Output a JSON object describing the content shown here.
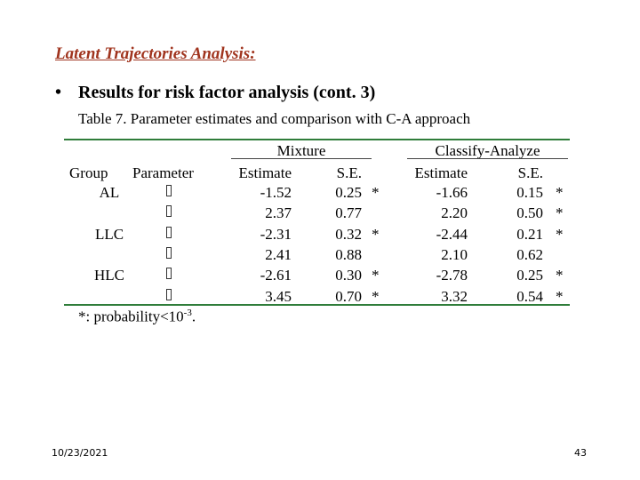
{
  "slide_title": "Latent Trajectories Analysis:",
  "bullet": {
    "marker": "•",
    "text": "Results for risk factor analysis (cont. 3)"
  },
  "table_caption": "Table 7. Parameter estimates and comparison with C-A approach",
  "table": {
    "group_headers": {
      "mixture": "Mixture",
      "classify_analyze": "Classify-Analyze"
    },
    "columns": [
      "Group",
      "Parameter",
      "Estimate",
      "S.E.",
      "Estimate",
      "S.E."
    ],
    "rows": [
      {
        "group": "AL",
        "mix_est": "-1.52",
        "mix_se": "0.25",
        "mix_sig": "*",
        "ca_est": "-1.66",
        "ca_se": "0.15",
        "ca_sig": "*"
      },
      {
        "group": "",
        "mix_est": "2.37",
        "mix_se": "0.77",
        "mix_sig": "",
        "ca_est": "2.20",
        "ca_se": "0.50",
        "ca_sig": "*"
      },
      {
        "group": "LLC",
        "mix_est": "-2.31",
        "mix_se": "0.32",
        "mix_sig": "*",
        "ca_est": "-2.44",
        "ca_se": "0.21",
        "ca_sig": "*"
      },
      {
        "group": "",
        "mix_est": "2.41",
        "mix_se": "0.88",
        "mix_sig": "",
        "ca_est": "2.10",
        "ca_se": "0.62",
        "ca_sig": ""
      },
      {
        "group": "HLC",
        "mix_est": "-2.61",
        "mix_se": "0.30",
        "mix_sig": "*",
        "ca_est": "-2.78",
        "ca_se": "0.25",
        "ca_sig": "*"
      },
      {
        "group": "",
        "mix_est": "3.45",
        "mix_se": "0.70",
        "mix_sig": "*",
        "ca_est": "3.32",
        "ca_se": "0.54",
        "ca_sig": "*"
      }
    ]
  },
  "footnote": {
    "prefix": "*: probability<10",
    "exponent": "-3",
    "suffix": "."
  },
  "footer": {
    "date": "10/23/2021",
    "page": "43"
  },
  "colors": {
    "title": "#a0341e",
    "table_rule": "#2f7d3a"
  }
}
